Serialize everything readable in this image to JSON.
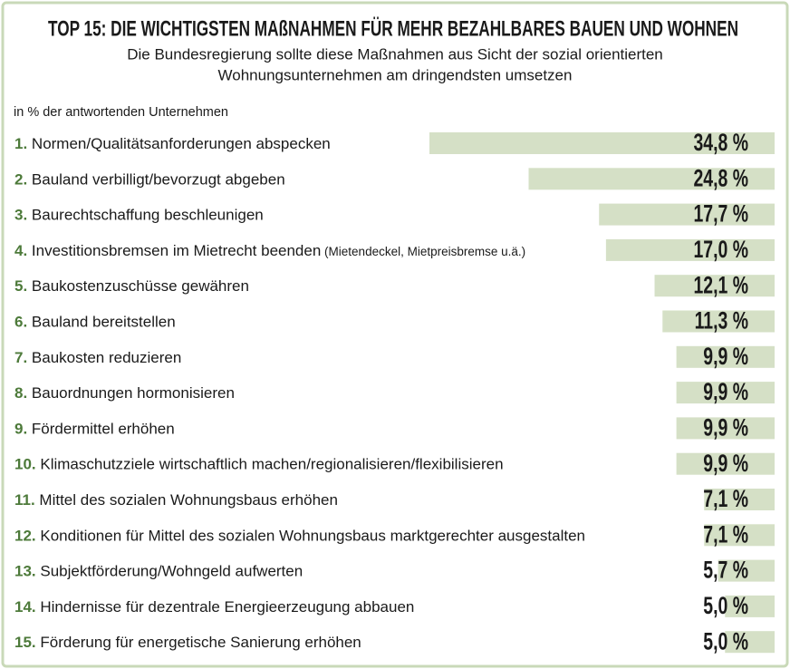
{
  "chart_data": {
    "type": "bar",
    "orientation": "horizontal",
    "title": "TOP 15: DIE WICHTIGSTEN MAßNAHMEN FÜR MEHR BEZAHLBARES BAUEN UND WOHNEN",
    "subtitle": [
      "Die Bundesregierung sollte diese Maßnahmen aus Sicht der sozial orientierten",
      "Wohnungsunternehmen am dringendsten umsetzen"
    ],
    "unit_label": "in % der antwortenden Unternehmen",
    "categories": [
      "1. Normen/Qualitätsanforderungen abspecken",
      "2. Bauland verbilligt/bevorzugt abgeben",
      "3. Baurechtschaffung beschleunigen",
      "4. Investitionsbremsen im Mietrecht beenden (Mietendeckel, Mietpreisbremse u.ä.)",
      "5. Baukostenzuschüsse gewähren",
      "6. Bauland bereitstellen",
      "7. Baukosten reduzieren",
      "8. Bauordnungen hormonisieren",
      "9. Fördermittel erhöhen",
      "10. Klimaschutzziele wirtschaftlich machen/regionalisieren/flexibilisieren",
      "11. Mittel des sozialen Wohnungsbaus erhöhen",
      "12. Konditionen für Mittel des sozialen Wohnungsbaus marktgerechter ausgestalten",
      "13. Subjektförderung/Wohngeld aufwerten",
      "14. Hindernisse für dezentrale Energieerzeugung abbauen",
      "15. Förderung für energetische Sanierung erhöhen"
    ],
    "values": [
      34.8,
      24.8,
      17.7,
      17.0,
      12.1,
      11.3,
      9.9,
      9.9,
      9.9,
      9.9,
      7.1,
      7.1,
      5.7,
      5.0,
      5.0
    ],
    "value_labels": [
      "34,8 %",
      "24,8 %",
      "17,7 %",
      "17,0 %",
      "12,1 %",
      "11,3 %",
      "9,9 %",
      "9,9 %",
      "9,9 %",
      "9,9 %",
      "7,1 %",
      "7,1 %",
      "5,7 %",
      "5,0 %",
      "5,0 %"
    ],
    "color": "#d5e0c6",
    "accent_color": "#4d7a3a",
    "xlim": [
      0,
      34.8
    ]
  }
}
